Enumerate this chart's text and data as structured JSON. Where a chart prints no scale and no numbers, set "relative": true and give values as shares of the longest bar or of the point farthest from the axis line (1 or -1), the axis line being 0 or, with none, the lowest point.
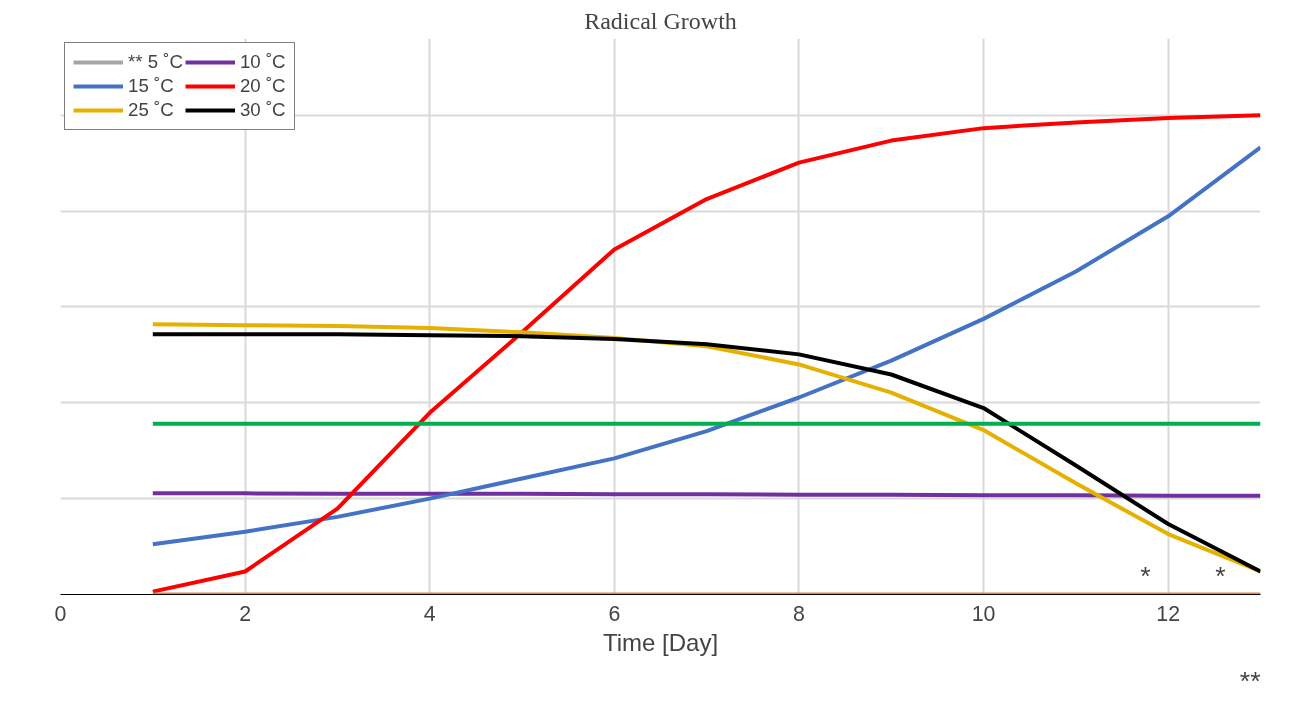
{
  "chart_data": {
    "type": "line",
    "title": "Radical Growth",
    "xlabel": "Time [Day]",
    "relative": true,
    "x": [
      1,
      2,
      3,
      4,
      5,
      6,
      7,
      8,
      9,
      10,
      11,
      12,
      13
    ],
    "xlim": [
      0,
      13
    ],
    "xticks": [
      0,
      2,
      4,
      6,
      8,
      10,
      12
    ],
    "grid": true,
    "legend": "top left",
    "tick_labels": "x",
    "series": [
      {
        "name": "** 5 ˚C",
        "color": "#a5a5a5",
        "values": [
          null,
          null,
          null,
          null,
          null,
          null,
          null,
          null,
          null,
          null,
          null,
          null,
          null
        ]
      },
      {
        "name": "10 ˚C",
        "color": "#7030a0",
        "values": [
          0.211,
          0.211,
          0.21,
          0.21,
          0.21,
          0.209,
          0.209,
          0.208,
          0.208,
          0.207,
          0.207,
          0.206,
          0.206
        ]
      },
      {
        "name": "15 ˚C",
        "color": "#4472c4",
        "values": [
          0.105,
          0.131,
          0.162,
          0.2,
          0.242,
          0.284,
          0.341,
          0.411,
          0.488,
          0.575,
          0.674,
          0.789,
          0.933
        ]
      },
      {
        "name": "20 ˚C",
        "color": "#ff0000",
        "values": [
          0.006,
          0.048,
          0.179,
          0.379,
          0.547,
          0.72,
          0.825,
          0.901,
          0.947,
          0.973,
          0.985,
          0.994,
          1
        ]
      },
      {
        "name": "25 ˚C",
        "color": "#e6b000",
        "values": [
          0.564,
          0.562,
          0.56,
          0.556,
          0.547,
          0.535,
          0.518,
          0.48,
          0.421,
          0.343,
          0.232,
          0.126,
          0.048
        ]
      },
      {
        "name": "30 ˚C",
        "color": "#000000",
        "values": [
          0.543,
          0.543,
          0.543,
          0.541,
          0.539,
          0.533,
          0.522,
          0.501,
          0.459,
          0.389,
          0.269,
          0.147,
          0.048
        ]
      },
      {
        "color": "#00b050",
        "values": [
          0.356,
          0.356,
          0.356,
          0.356,
          0.356,
          0.356,
          0.356,
          0.356,
          0.356,
          0.356,
          0.356,
          0.356,
          0.356
        ]
      },
      {
        "color": "#ed7d31",
        "values": [
          0,
          0,
          0,
          0,
          0,
          0,
          0,
          0,
          0,
          0,
          0,
          0,
          0
        ]
      }
    ],
    "annotations": [
      "*",
      "*",
      "**"
    ]
  }
}
